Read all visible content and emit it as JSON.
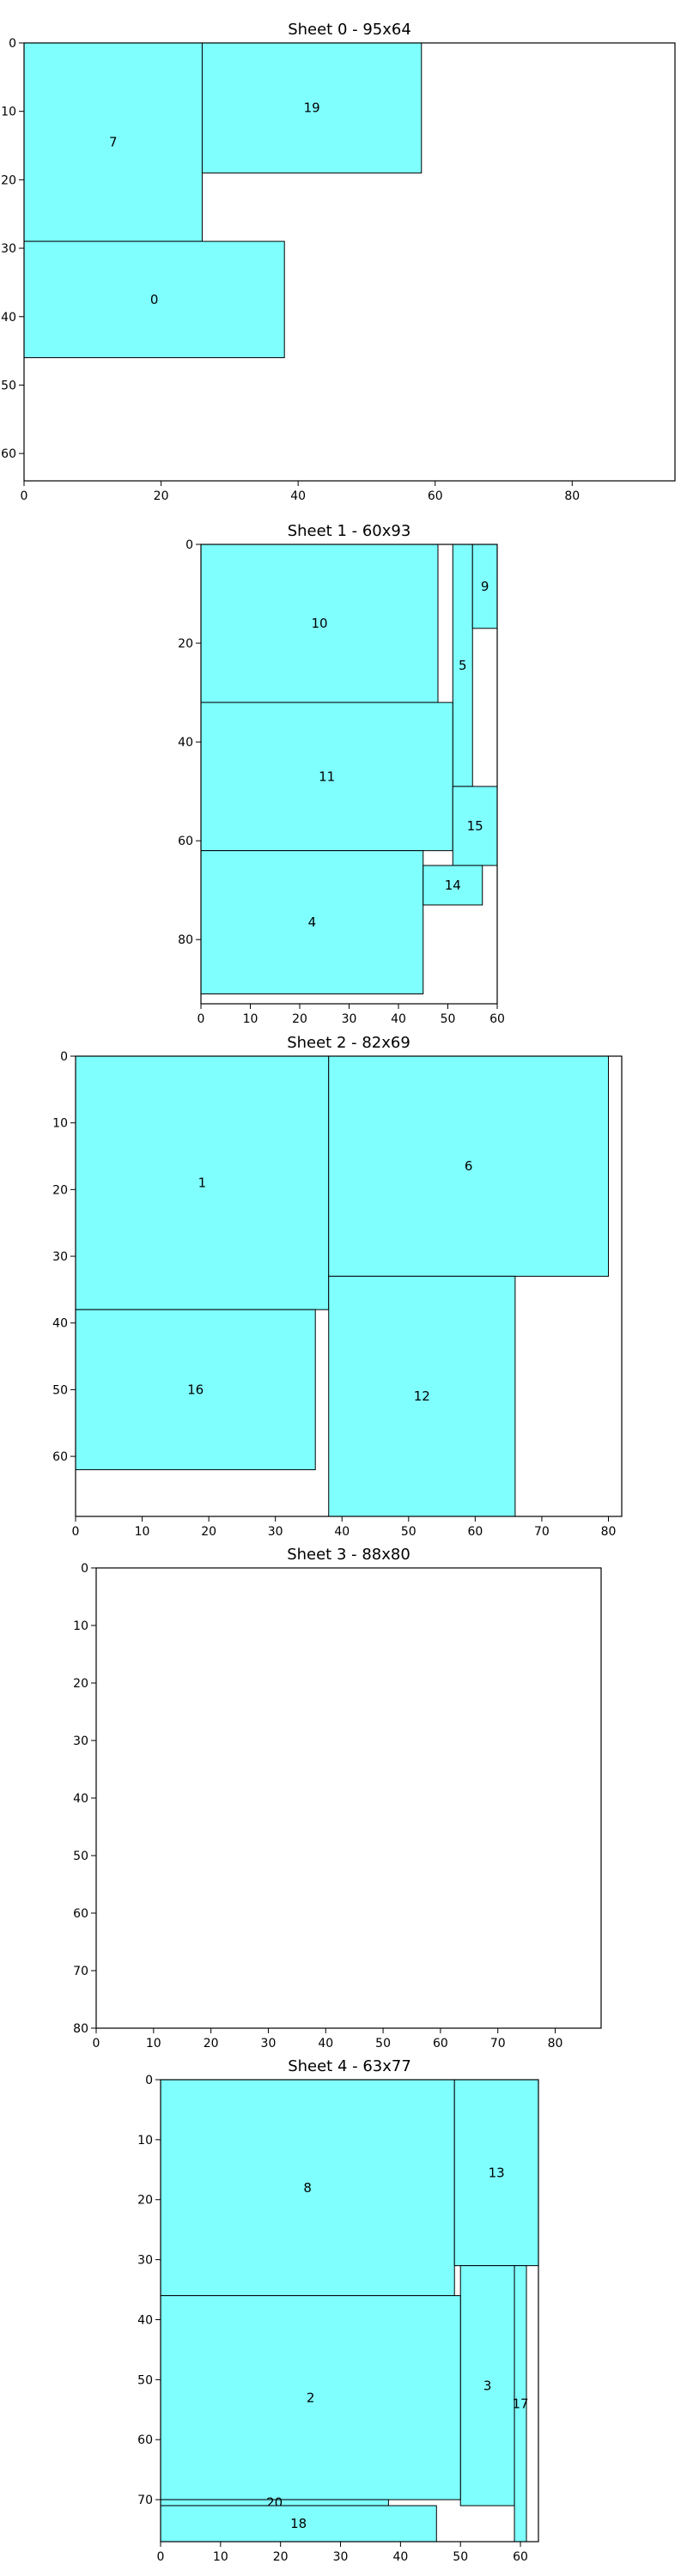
{
  "colors": {
    "rect_fill": "#80ffff",
    "rect_stroke": "#000000",
    "axes": "#000000",
    "background": "#ffffff"
  },
  "chart_data": [
    {
      "type": "bar",
      "title": "Sheet 0 - 95x64",
      "xlim": [
        0,
        95
      ],
      "ylim": [
        64,
        0
      ],
      "xticks": [
        0,
        20,
        40,
        60,
        80
      ],
      "yticks": [
        0,
        10,
        20,
        30,
        40,
        50,
        60
      ],
      "grid": false,
      "pieces": [
        {
          "label": "7",
          "x": 0,
          "y": 0,
          "w": 26,
          "h": 29
        },
        {
          "label": "19",
          "x": 26,
          "y": 0,
          "w": 32,
          "h": 19
        },
        {
          "label": "0",
          "x": 0,
          "y": 29,
          "w": 38,
          "h": 17
        }
      ]
    },
    {
      "type": "bar",
      "title": "Sheet 1 - 60x93",
      "xlim": [
        0,
        60
      ],
      "ylim": [
        93,
        0
      ],
      "xticks": [
        0,
        10,
        20,
        30,
        40,
        50,
        60
      ],
      "yticks": [
        0,
        20,
        40,
        60,
        80
      ],
      "grid": false,
      "pieces": [
        {
          "label": "10",
          "x": 0,
          "y": 0,
          "w": 48,
          "h": 32
        },
        {
          "label": "5",
          "x": 51,
          "y": 0,
          "w": 4,
          "h": 49
        },
        {
          "label": "9",
          "x": 55,
          "y": 0,
          "w": 5,
          "h": 17
        },
        {
          "label": "11",
          "x": 0,
          "y": 32,
          "w": 51,
          "h": 30
        },
        {
          "label": "15",
          "x": 51,
          "y": 49,
          "w": 9,
          "h": 16
        },
        {
          "label": "4",
          "x": 0,
          "y": 62,
          "w": 45,
          "h": 29
        },
        {
          "label": "14",
          "x": 45,
          "y": 65,
          "w": 12,
          "h": 8
        }
      ]
    },
    {
      "type": "bar",
      "title": "Sheet 2 - 82x69",
      "xlim": [
        0,
        82
      ],
      "ylim": [
        69,
        0
      ],
      "xticks": [
        0,
        10,
        20,
        30,
        40,
        50,
        60,
        70,
        80
      ],
      "yticks": [
        0,
        10,
        20,
        30,
        40,
        50,
        60
      ],
      "grid": false,
      "pieces": [
        {
          "label": "1",
          "x": 0,
          "y": 0,
          "w": 38,
          "h": 38
        },
        {
          "label": "6",
          "x": 38,
          "y": 0,
          "w": 42,
          "h": 33
        },
        {
          "label": "16",
          "x": 0,
          "y": 38,
          "w": 36,
          "h": 24
        },
        {
          "label": "12",
          "x": 38,
          "y": 33,
          "w": 28,
          "h": 36
        }
      ]
    },
    {
      "type": "bar",
      "title": "Sheet 3 - 88x80",
      "xlim": [
        0,
        88
      ],
      "ylim": [
        80,
        0
      ],
      "xticks": [
        0,
        10,
        20,
        30,
        40,
        50,
        60,
        70,
        80
      ],
      "yticks": [
        0,
        10,
        20,
        30,
        40,
        50,
        60,
        70,
        80
      ],
      "grid": false,
      "pieces": []
    },
    {
      "type": "bar",
      "title": "Sheet 4 - 63x77",
      "xlim": [
        0,
        63
      ],
      "ylim": [
        77,
        0
      ],
      "xticks": [
        0,
        10,
        20,
        30,
        40,
        50,
        60
      ],
      "yticks": [
        0,
        10,
        20,
        30,
        40,
        50,
        60,
        70
      ],
      "grid": false,
      "pieces": [
        {
          "label": "8",
          "x": 0,
          "y": 0,
          "w": 49,
          "h": 36
        },
        {
          "label": "13",
          "x": 49,
          "y": 0,
          "w": 14,
          "h": 31
        },
        {
          "label": "3",
          "x": 50,
          "y": 31,
          "w": 9,
          "h": 40
        },
        {
          "label": "17",
          "x": 59,
          "y": 31,
          "w": 2,
          "h": 46
        },
        {
          "label": "2",
          "x": 0,
          "y": 36,
          "w": 50,
          "h": 34
        },
        {
          "label": "20",
          "x": 0,
          "y": 70,
          "w": 38,
          "h": 1
        },
        {
          "label": "18",
          "x": 0,
          "y": 71,
          "w": 46,
          "h": 6
        }
      ]
    }
  ]
}
